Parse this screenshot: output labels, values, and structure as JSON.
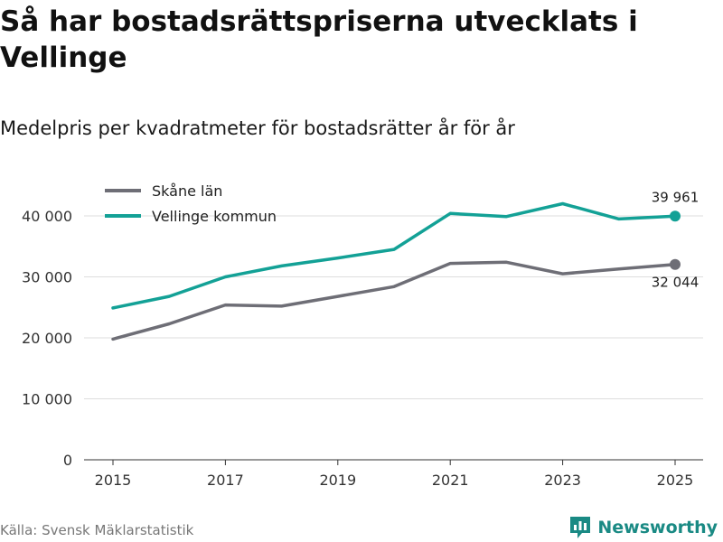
{
  "title": "Så har bostadsrättspriserna utvecklats i Vellinge",
  "subtitle": "Medelpris per kvadratmeter för bostadsrätter år för år",
  "source": "Källa: Svensk Mäklarstatistik",
  "brand": {
    "name": "Newsworthy",
    "icon": "newsworthy-logo-icon",
    "color": "#1a8a84"
  },
  "chart_data": {
    "type": "line",
    "title": "Så har bostadsrättspriserna utvecklats i Vellinge",
    "subtitle": "Medelpris per kvadratmeter för bostadsrätter år för år",
    "xlabel": "",
    "ylabel": "",
    "x": [
      2015,
      2016,
      2017,
      2018,
      2019,
      2020,
      2021,
      2022,
      2023,
      2024,
      2025
    ],
    "xticks": [
      2015,
      2017,
      2019,
      2021,
      2023,
      2025
    ],
    "xtick_labels": [
      "2015",
      "2017",
      "2019",
      "2021",
      "2023",
      "2025"
    ],
    "yticks": [
      0,
      10000,
      20000,
      30000,
      40000
    ],
    "ytick_labels": [
      "0",
      "10 000",
      "20 000",
      "30 000",
      "40 000"
    ],
    "ylim": [
      0,
      42000
    ],
    "xlim": [
      2015,
      2025
    ],
    "grid": true,
    "legend_position": "top-left",
    "series": [
      {
        "name": "Skåne län",
        "color": "#6e6e76",
        "values": [
          19800,
          22300,
          25400,
          25200,
          26800,
          28400,
          32200,
          32400,
          30500,
          31300,
          32044
        ],
        "end_label": "32 044"
      },
      {
        "name": "Vellinge kommun",
        "color": "#13a196",
        "values": [
          24900,
          26800,
          30000,
          31800,
          33100,
          34500,
          40400,
          39900,
          42000,
          39500,
          39961
        ],
        "end_label": "39 961"
      }
    ]
  }
}
